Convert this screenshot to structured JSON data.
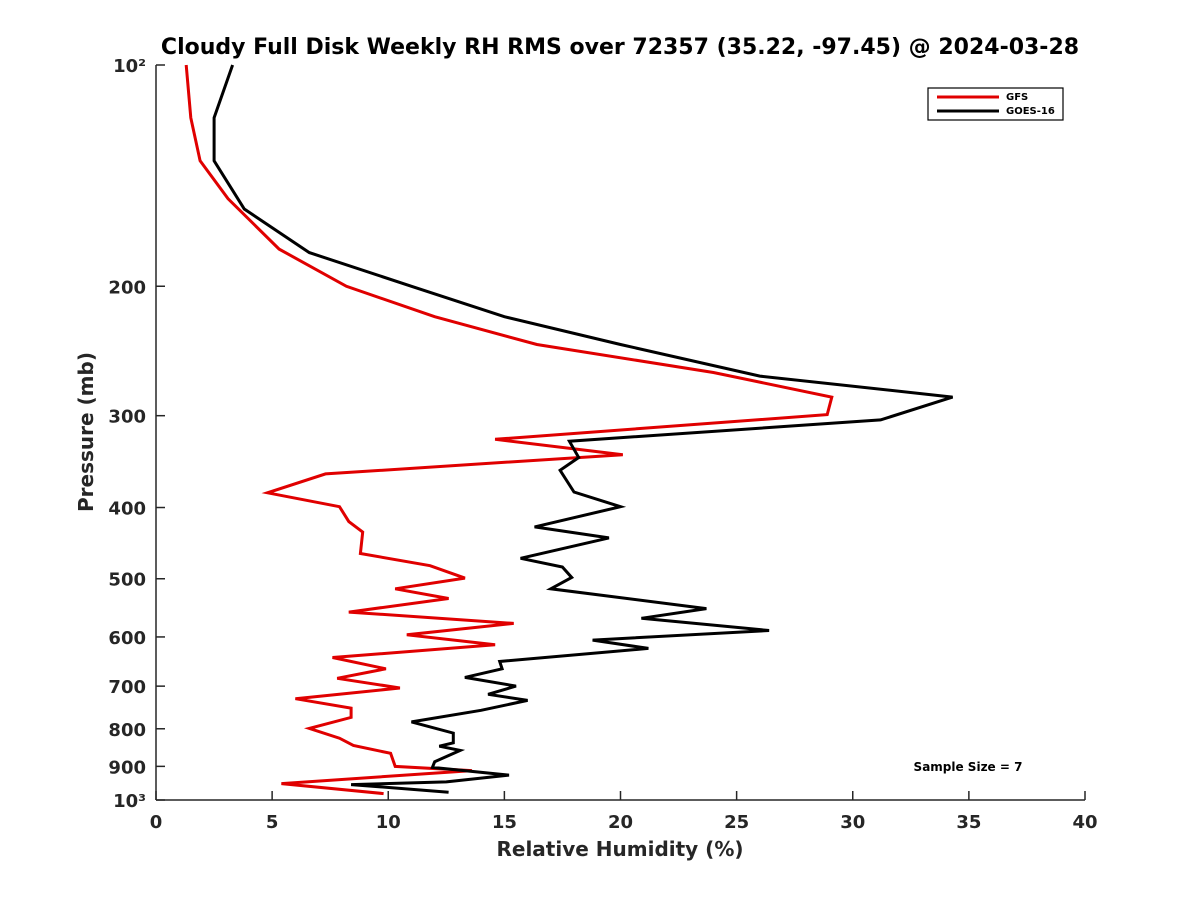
{
  "chart_data": {
    "type": "line",
    "title": "Cloudy Full Disk Weekly RH RMS over 72357 (35.22, -97.45) @ 2024-03-28",
    "xlabel": "Relative Humidity (%)",
    "ylabel": "Pressure (mb)",
    "xlim": [
      0,
      40
    ],
    "ylim": [
      100,
      1000
    ],
    "y_scale": "log",
    "y_reversed": true,
    "x_ticks": [
      0,
      5,
      10,
      15,
      20,
      25,
      30,
      35,
      40
    ],
    "x_tick_labels": [
      "0",
      "5",
      "10",
      "15",
      "20",
      "25",
      "30",
      "35",
      "40"
    ],
    "y_ticks": [
      100,
      200,
      300,
      400,
      500,
      600,
      700,
      800,
      900,
      1000
    ],
    "y_tick_labels": [
      "10²",
      "200",
      "300",
      "400",
      "500",
      "600",
      "700",
      "800",
      "900",
      "10³"
    ],
    "grid": false,
    "legend_position": "top-right",
    "annotation": "Sample Size = 7",
    "series": [
      {
        "name": "GFS",
        "color": "#e00000",
        "points": [
          [
            1.3,
            100
          ],
          [
            1.5,
            118
          ],
          [
            1.9,
            135
          ],
          [
            3.1,
            152
          ],
          [
            5.3,
            178
          ],
          [
            8.2,
            200
          ],
          [
            12.0,
            220
          ],
          [
            16.4,
            240
          ],
          [
            24.0,
            262
          ],
          [
            29.1,
            283
          ],
          [
            28.9,
            299
          ],
          [
            14.6,
            323
          ],
          [
            20.1,
            339
          ],
          [
            7.3,
            360
          ],
          [
            4.8,
            382
          ],
          [
            7.9,
            399
          ],
          [
            8.3,
            418
          ],
          [
            8.9,
            432
          ],
          [
            8.8,
            462
          ],
          [
            11.8,
            480
          ],
          [
            13.3,
            499
          ],
          [
            10.3,
            516
          ],
          [
            12.6,
            532
          ],
          [
            8.3,
            555
          ],
          [
            15.4,
            575
          ],
          [
            10.8,
            596
          ],
          [
            14.6,
            615
          ],
          [
            7.6,
            640
          ],
          [
            9.9,
            663
          ],
          [
            7.8,
            683
          ],
          [
            10.5,
            704
          ],
          [
            6.0,
            728
          ],
          [
            8.4,
            750
          ],
          [
            8.4,
            772
          ],
          [
            6.6,
            799
          ],
          [
            7.9,
            824
          ],
          [
            8.5,
            843
          ],
          [
            10.1,
            864
          ],
          [
            10.3,
            900
          ],
          [
            13.6,
            912
          ],
          [
            5.4,
            950
          ],
          [
            9.8,
            980
          ]
        ]
      },
      {
        "name": "GOES-16",
        "color": "#000000",
        "points": [
          [
            3.3,
            100
          ],
          [
            2.5,
            118
          ],
          [
            2.5,
            135
          ],
          [
            3.8,
            157
          ],
          [
            6.6,
            180
          ],
          [
            11.0,
            200
          ],
          [
            15.0,
            220
          ],
          [
            20.0,
            240
          ],
          [
            26.0,
            265
          ],
          [
            34.3,
            283
          ],
          [
            31.2,
            304
          ],
          [
            17.8,
            325
          ],
          [
            18.2,
            342
          ],
          [
            17.4,
            356
          ],
          [
            18.0,
            381
          ],
          [
            20.0,
            399
          ],
          [
            16.3,
            425
          ],
          [
            19.5,
            440
          ],
          [
            15.7,
            469
          ],
          [
            17.5,
            482
          ],
          [
            17.9,
            498
          ],
          [
            17.0,
            516
          ],
          [
            23.7,
            549
          ],
          [
            20.9,
            566
          ],
          [
            26.4,
            588
          ],
          [
            18.8,
            606
          ],
          [
            21.2,
            622
          ],
          [
            14.8,
            648
          ],
          [
            14.9,
            663
          ],
          [
            13.3,
            681
          ],
          [
            15.5,
            700
          ],
          [
            14.3,
            718
          ],
          [
            16.0,
            732
          ],
          [
            14.0,
            755
          ],
          [
            11.0,
            783
          ],
          [
            12.8,
            811
          ],
          [
            12.8,
            836
          ],
          [
            12.2,
            845
          ],
          [
            13.1,
            856
          ],
          [
            12.0,
            887
          ],
          [
            11.9,
            903
          ],
          [
            15.2,
            925
          ],
          [
            12.5,
            945
          ],
          [
            8.4,
            953
          ],
          [
            12.6,
            976
          ]
        ]
      }
    ]
  }
}
